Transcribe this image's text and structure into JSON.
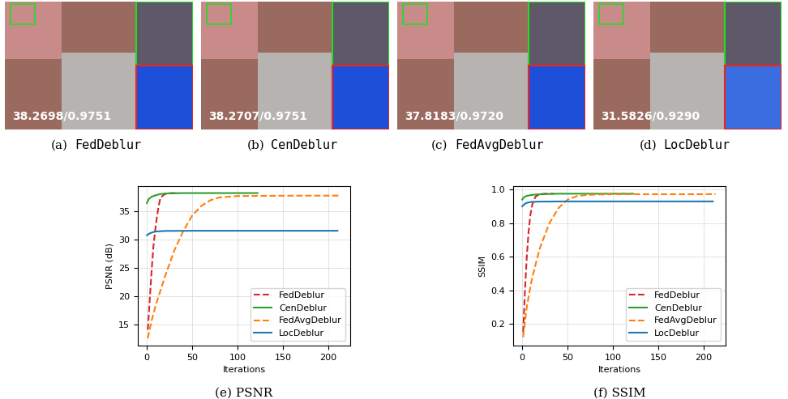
{
  "images": [
    {
      "label": "(a)",
      "name": "FedDeblur",
      "overlay": "38.2698/0.9751"
    },
    {
      "label": "(b)",
      "name": "CenDeblur",
      "overlay": "38.2707/0.9751"
    },
    {
      "label": "(c)",
      "name": "FedAvgDeblur",
      "overlay": "37.8183/0.9720"
    },
    {
      "label": "(d)",
      "name": "LocDeblur",
      "overlay": "31.5826/0.9290"
    }
  ],
  "chart_data": [
    {
      "type": "line",
      "title": "(e) PSNR",
      "x_label": "Iterations",
      "y_label": "PSNR (dB)",
      "xlim": [
        -10,
        224
      ],
      "xticks": [
        0,
        50,
        100,
        150,
        200
      ],
      "ylim": [
        11.2,
        39.5
      ],
      "yticks": [
        15,
        20,
        25,
        30,
        35
      ],
      "grid": true,
      "legend": "lower right",
      "series": [
        {
          "name": "FedDeblur",
          "color": "#d62728",
          "line_style": "dashed",
          "x": [
            1,
            3,
            5,
            7,
            9,
            11,
            13,
            15,
            20,
            25,
            30,
            35
          ],
          "values": [
            14,
            19,
            24,
            28.5,
            31.5,
            34,
            36,
            37.5,
            38.1,
            38.25,
            38.27,
            38.27
          ]
        },
        {
          "name": "CenDeblur",
          "color": "#2ca02c",
          "line_style": "solid",
          "x": [
            0,
            2,
            5,
            10,
            15,
            20,
            40,
            60,
            80,
            100,
            122
          ],
          "values": [
            36.5,
            37.2,
            37.6,
            37.9,
            38.1,
            38.2,
            38.27,
            38.27,
            38.27,
            38.27,
            38.27
          ]
        },
        {
          "name": "FedAvgDeblur",
          "color": "#ff7f0e",
          "line_style": "dashed",
          "x": [
            1,
            5,
            10,
            15,
            20,
            30,
            40,
            50,
            60,
            70,
            80,
            100,
            150,
            213
          ],
          "values": [
            12.5,
            15.5,
            18.5,
            21,
            23.5,
            28,
            31.5,
            34.3,
            36,
            37,
            37.5,
            37.75,
            37.8,
            37.82
          ]
        },
        {
          "name": "LocDeblur",
          "color": "#1f77b4",
          "line_style": "solid",
          "x": [
            0,
            3,
            6,
            10,
            20,
            50,
            100,
            150,
            210
          ],
          "values": [
            30.8,
            31.1,
            31.3,
            31.45,
            31.55,
            31.58,
            31.58,
            31.58,
            31.58
          ]
        }
      ]
    },
    {
      "type": "line",
      "title": "(f) SSIM",
      "x_label": "Iterations",
      "y_label": "SSIM",
      "xlim": [
        -10,
        224
      ],
      "xticks": [
        0,
        50,
        100,
        150,
        200
      ],
      "ylim": [
        0.07,
        1.02
      ],
      "yticks": [
        0.2,
        0.4,
        0.6,
        0.8,
        1.0
      ],
      "grid": true,
      "legend": "lower right",
      "series": [
        {
          "name": "FedDeblur",
          "color": "#d62728",
          "line_style": "dashed",
          "x": [
            1,
            3,
            5,
            7,
            9,
            11,
            13,
            15,
            20,
            25,
            30,
            35
          ],
          "values": [
            0.15,
            0.4,
            0.6,
            0.75,
            0.85,
            0.91,
            0.94,
            0.96,
            0.972,
            0.975,
            0.975,
            0.975
          ]
        },
        {
          "name": "CenDeblur",
          "color": "#2ca02c",
          "line_style": "solid",
          "x": [
            0,
            2,
            5,
            10,
            15,
            20,
            40,
            60,
            80,
            100,
            122
          ],
          "values": [
            0.94,
            0.955,
            0.962,
            0.967,
            0.97,
            0.972,
            0.975,
            0.975,
            0.975,
            0.975,
            0.975
          ]
        },
        {
          "name": "FedAvgDeblur",
          "color": "#ff7f0e",
          "line_style": "dashed",
          "x": [
            1,
            5,
            10,
            15,
            20,
            30,
            40,
            50,
            60,
            70,
            80,
            100,
            150,
            213
          ],
          "values": [
            0.12,
            0.3,
            0.45,
            0.56,
            0.66,
            0.8,
            0.89,
            0.94,
            0.96,
            0.967,
            0.97,
            0.972,
            0.972,
            0.972
          ]
        },
        {
          "name": "LocDeblur",
          "color": "#1f77b4",
          "line_style": "solid",
          "x": [
            0,
            3,
            6,
            10,
            20,
            50,
            100,
            150,
            210
          ],
          "values": [
            0.9,
            0.915,
            0.922,
            0.926,
            0.928,
            0.929,
            0.929,
            0.929,
            0.929
          ]
        }
      ]
    }
  ]
}
